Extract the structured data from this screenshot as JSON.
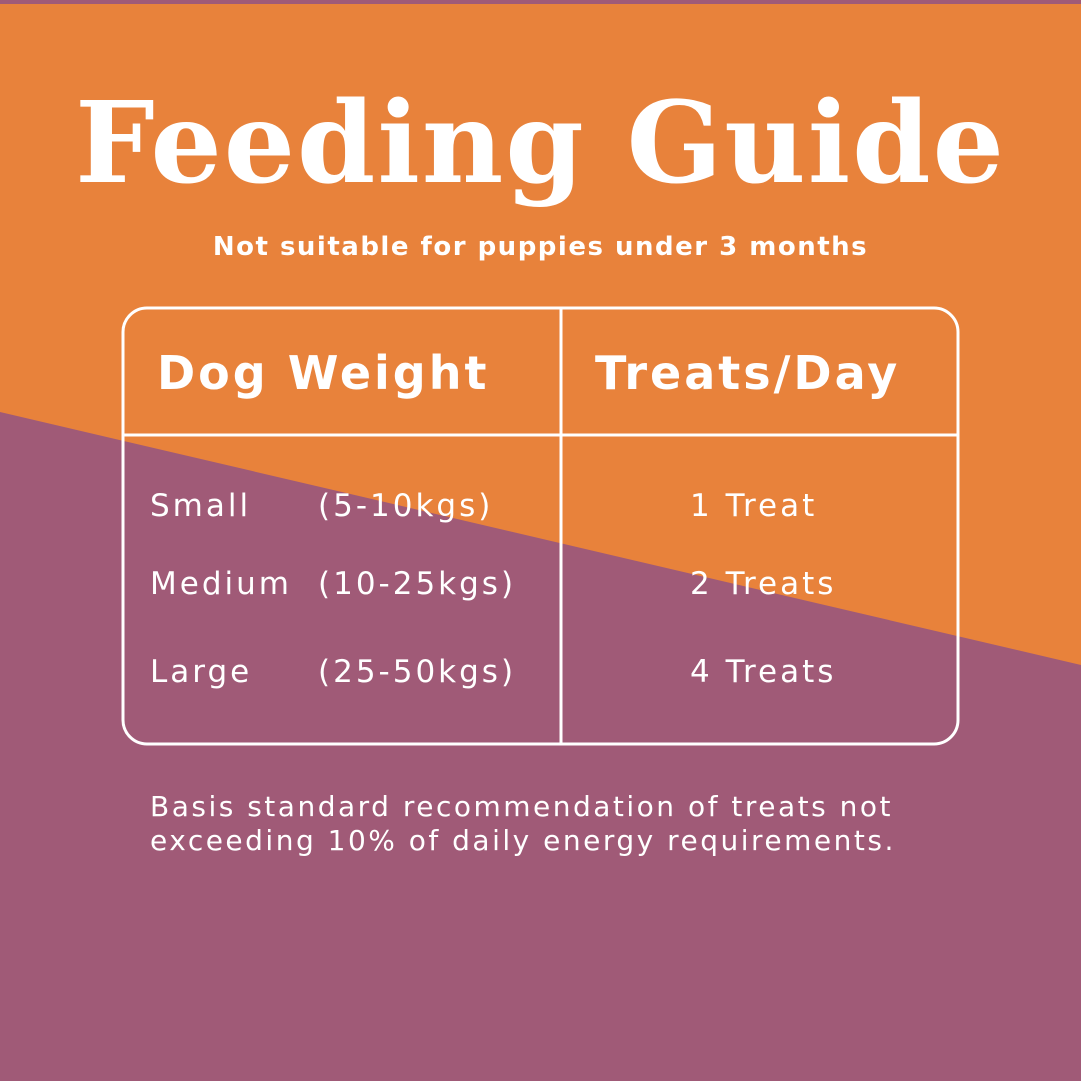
{
  "title": "Feeding Guide",
  "subtitle": "Not suitable for puppies under 3 months",
  "table": {
    "header": [
      "Dog Weight",
      "Treats/Day"
    ],
    "rows": [
      [
        "Small",
        "(5-10kgs)",
        "1 Treat"
      ],
      [
        "Medium",
        "(10-25kgs)",
        "2 Treats"
      ],
      [
        "Large",
        "(25-50kgs)",
        "4 Treats"
      ]
    ]
  },
  "note": "Basis standard recommendation of treats not exceeding 10% of daily energy requirements."
}
